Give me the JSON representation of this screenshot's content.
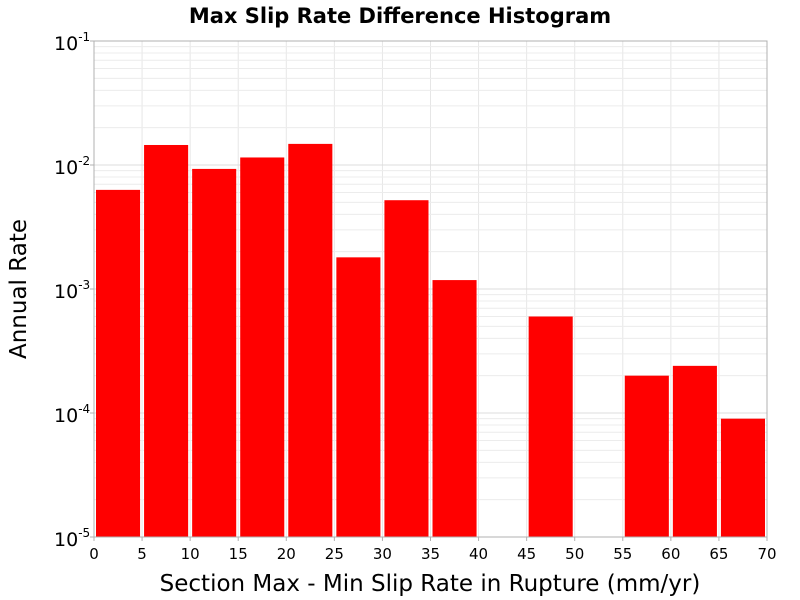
{
  "chart_data": {
    "type": "bar",
    "title": "Max Slip Rate Difference Histogram",
    "xlabel": "Section Max - Min Slip Rate in Rupture (mm/yr)",
    "ylabel": "Annual Rate",
    "xlim": [
      0,
      70
    ],
    "ylim": [
      1e-05,
      0.1
    ],
    "yscale": "log",
    "grid": true,
    "bar_color": "#ff0000",
    "bin_width": 5,
    "x_ticks": [
      "0",
      "5",
      "10",
      "15",
      "20",
      "25",
      "30",
      "35",
      "40",
      "45",
      "50",
      "55",
      "60",
      "65",
      "70"
    ],
    "y_ticks": [
      {
        "base": "10",
        "exp": "-1",
        "value": 0.1
      },
      {
        "base": "10",
        "exp": "-2",
        "value": 0.01
      },
      {
        "base": "10",
        "exp": "-3",
        "value": 0.001
      },
      {
        "base": "10",
        "exp": "-4",
        "value": 0.0001
      },
      {
        "base": "10",
        "exp": "-5",
        "value": 1e-05
      }
    ],
    "bars": [
      {
        "x_start": 0,
        "x_end": 5,
        "value": 0.0063
      },
      {
        "x_start": 5,
        "x_end": 10,
        "value": 0.0145
      },
      {
        "x_start": 10,
        "x_end": 15,
        "value": 0.0093
      },
      {
        "x_start": 15,
        "x_end": 20,
        "value": 0.0115
      },
      {
        "x_start": 20,
        "x_end": 25,
        "value": 0.0148
      },
      {
        "x_start": 25,
        "x_end": 30,
        "value": 0.0018
      },
      {
        "x_start": 30,
        "x_end": 35,
        "value": 0.0052
      },
      {
        "x_start": 35,
        "x_end": 40,
        "value": 0.00118
      },
      {
        "x_start": 45,
        "x_end": 50,
        "value": 0.0006
      },
      {
        "x_start": 55,
        "x_end": 60,
        "value": 0.0002
      },
      {
        "x_start": 60,
        "x_end": 65,
        "value": 0.00024
      },
      {
        "x_start": 65,
        "x_end": 70,
        "value": 9e-05
      }
    ]
  }
}
